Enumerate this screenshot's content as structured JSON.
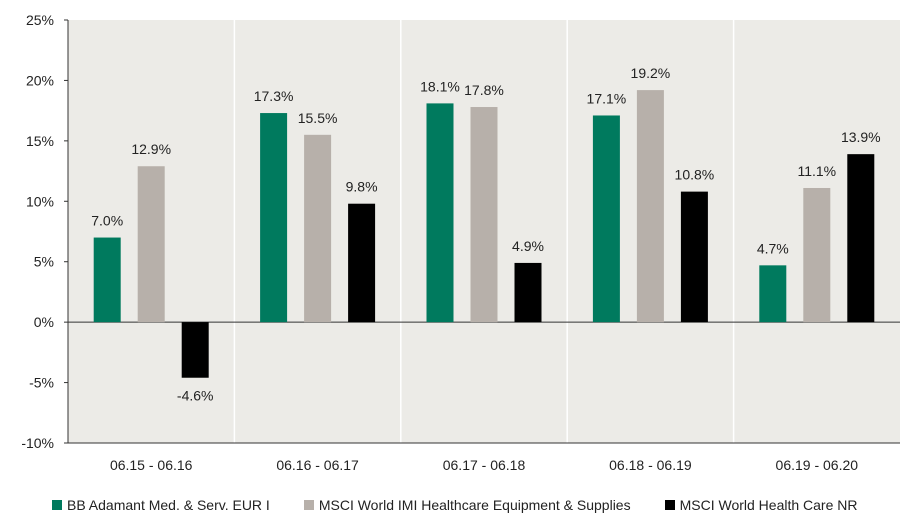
{
  "chart_data": {
    "type": "bar",
    "title": "",
    "xlabel": "",
    "ylabel": "",
    "ylim": [
      -10,
      25
    ],
    "yticks": [
      25,
      20,
      15,
      10,
      5,
      0,
      -5,
      -10
    ],
    "ytick_labels": [
      "25%",
      "20%",
      "15%",
      "10%",
      "5%",
      "0%",
      "-5%",
      "-10%"
    ],
    "categories": [
      "06.15 - 06.16",
      "06.16 - 06.17",
      "06.17 - 06.18",
      "06.18 - 06.19",
      "06.19 - 06.20"
    ],
    "series": [
      {
        "name": "BB Adamant Med. & Serv. EUR I",
        "color": "#007A5E",
        "values": [
          7.0,
          17.3,
          18.1,
          17.1,
          4.7
        ],
        "labels": [
          "7.0%",
          "17.3%",
          "18.1%",
          "17.1%",
          "4.7%"
        ]
      },
      {
        "name": "MSCI World IMI Healthcare Equipment & Supplies",
        "color": "#B7B0AA",
        "values": [
          12.9,
          15.5,
          17.8,
          19.2,
          11.1
        ],
        "labels": [
          "12.9%",
          "15.5%",
          "17.8%",
          "19.2%",
          "11.1%"
        ]
      },
      {
        "name": "MSCI World Health Care NR",
        "color": "#000000",
        "values": [
          -4.6,
          9.8,
          4.9,
          10.8,
          13.9
        ],
        "labels": [
          "-4.6%",
          "9.8%",
          "4.9%",
          "10.8%",
          "13.9%"
        ]
      }
    ],
    "plot_background": "#ECEBE7",
    "grid": false,
    "legend_position": "bottom"
  }
}
